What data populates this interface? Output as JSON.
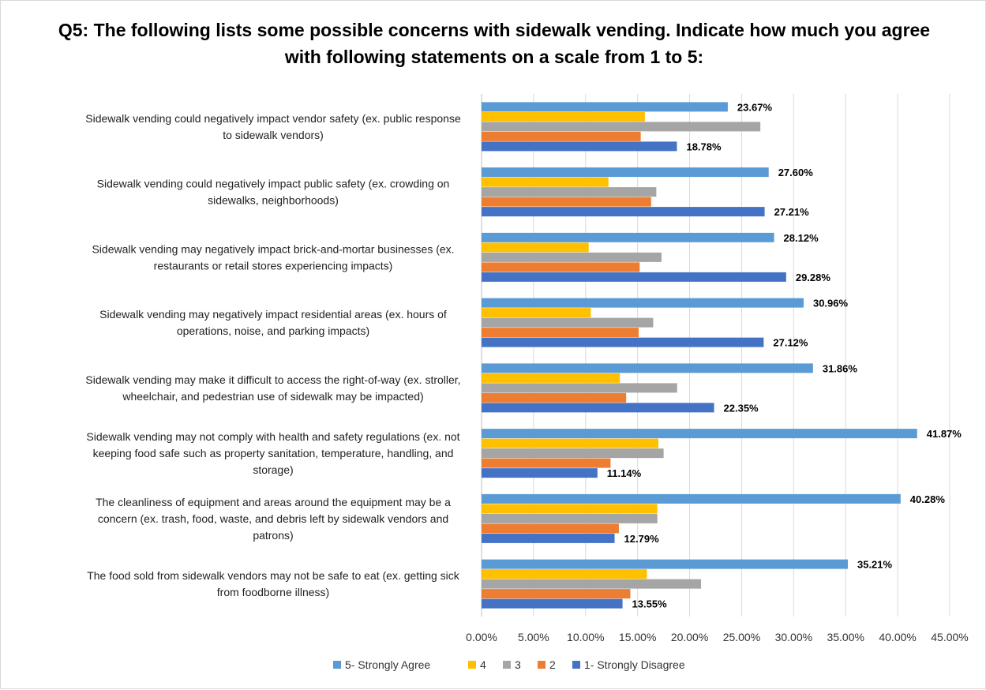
{
  "chart_data": {
    "type": "bar",
    "orientation": "horizontal",
    "title": "Q5: The following lists some possible concerns with sidewalk vending. Indicate how much you agree with following statements on a scale from 1 to 5:",
    "categories": [
      [
        "Sidewalk vending could negatively impact vendor safety (ex. public response",
        "to sidewalk vendors)"
      ],
      [
        "Sidewalk vending could negatively impact public safety (ex. crowding on",
        "sidewalks, neighborhoods)"
      ],
      [
        "Sidewalk vending may negatively impact brick-and-mortar businesses  (ex.",
        "restaurants or retail stores experiencing impacts)"
      ],
      [
        "Sidewalk vending may negatively impact residential areas (ex. hours of",
        "operations, noise, and parking impacts)"
      ],
      [
        "Sidewalk vending may make it difficult to access the right-of-way (ex. stroller,",
        "wheelchair, and pedestrian use of sidewalk may be impacted)"
      ],
      [
        "Sidewalk vending may not comply with health and safety regulations (ex. not",
        "keeping food safe such as property sanitation, temperature, handling, and",
        "storage)"
      ],
      [
        "The cleanliness of equipment and areas around the equipment may be a",
        "concern (ex. trash, food, waste, and debris left by sidewalk vendors and",
        "patrons)"
      ],
      [
        "The food sold from sidewalk vendors may not be safe to eat (ex. getting sick",
        "from foodborne illness)"
      ]
    ],
    "series": [
      {
        "name": "5- Strongly Agree",
        "color": "#5b9bd5",
        "values": [
          23.67,
          27.6,
          28.12,
          30.96,
          31.86,
          41.87,
          40.28,
          35.21
        ],
        "labels": [
          "23.67%",
          "27.60%",
          "28.12%",
          "30.96%",
          "31.86%",
          "41.87%",
          "40.28%",
          "35.21%"
        ]
      },
      {
        "name": "4",
        "color": "#ffc000",
        "values": [
          15.7,
          12.2,
          10.3,
          10.5,
          13.3,
          17.0,
          16.9,
          15.9
        ]
      },
      {
        "name": "3",
        "color": "#a5a5a5",
        "values": [
          26.8,
          16.8,
          17.3,
          16.5,
          18.8,
          17.5,
          16.9,
          21.1
        ]
      },
      {
        "name": "2",
        "color": "#ed7d31",
        "values": [
          15.3,
          16.3,
          15.2,
          15.1,
          13.9,
          12.4,
          13.2,
          14.3
        ]
      },
      {
        "name": "1- Strongly Disagree",
        "color": "#4472c4",
        "values": [
          18.78,
          27.21,
          29.28,
          27.12,
          22.35,
          11.14,
          12.79,
          13.55
        ],
        "labels": [
          "18.78%",
          "27.21%",
          "29.28%",
          "27.12%",
          "22.35%",
          "11.14%",
          "12.79%",
          "13.55%"
        ]
      }
    ],
    "xlim": [
      0,
      45
    ],
    "xticks": [
      "0.00%",
      "5.00%",
      "10.00%",
      "15.00%",
      "20.00%",
      "25.00%",
      "30.00%",
      "35.00%",
      "40.00%",
      "45.00%"
    ],
    "grid": true,
    "legend_position": "bottom"
  }
}
